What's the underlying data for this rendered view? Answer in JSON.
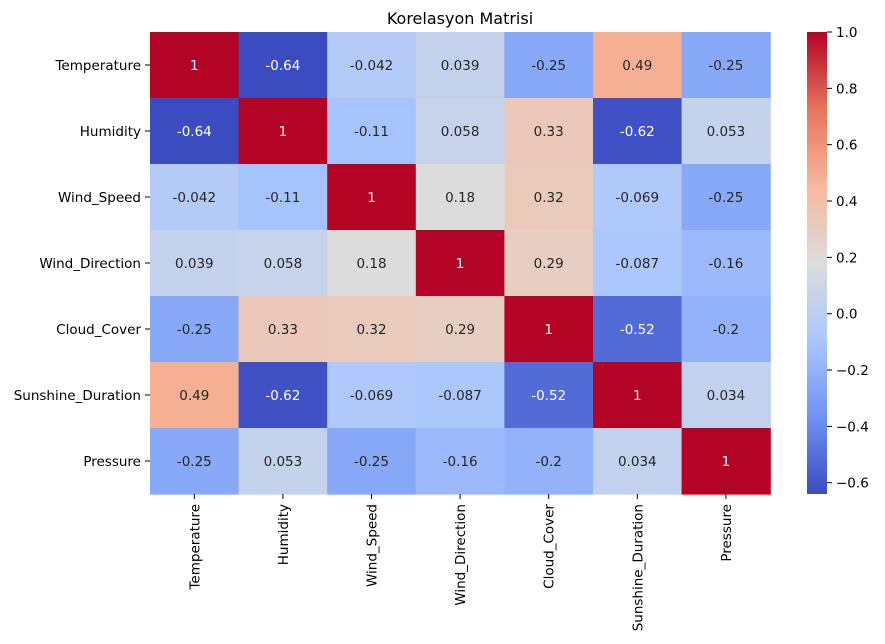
{
  "chart_data": {
    "type": "heatmap",
    "title": "Korelasyon Matrisi",
    "xlabel": "",
    "ylabel": "",
    "row_labels": [
      "Temperature",
      "Humidity",
      "Wind_Speed",
      "Wind_Direction",
      "Cloud_Cover",
      "Sunshine_Duration",
      "Pressure"
    ],
    "col_labels": [
      "Temperature",
      "Humidity",
      "Wind_Speed",
      "Wind_Direction",
      "Cloud_Cover",
      "Sunshine_Duration",
      "Pressure"
    ],
    "values": [
      [
        1,
        -0.64,
        -0.042,
        0.039,
        -0.25,
        0.49,
        -0.25
      ],
      [
        -0.64,
        1,
        -0.11,
        0.058,
        0.33,
        -0.62,
        0.053
      ],
      [
        -0.042,
        -0.11,
        1,
        0.18,
        0.32,
        -0.069,
        -0.25
      ],
      [
        0.039,
        0.058,
        0.18,
        1,
        0.29,
        -0.087,
        -0.16
      ],
      [
        -0.25,
        0.33,
        0.32,
        0.29,
        1,
        -0.52,
        -0.2
      ],
      [
        0.49,
        -0.62,
        -0.069,
        -0.087,
        -0.52,
        1,
        0.034
      ],
      [
        -0.25,
        0.053,
        -0.25,
        -0.16,
        -0.2,
        0.034,
        1
      ]
    ],
    "annot": [
      [
        "1",
        "-0.64",
        "-0.042",
        "0.039",
        "-0.25",
        "0.49",
        "-0.25"
      ],
      [
        "-0.64",
        "1",
        "-0.11",
        "0.058",
        "0.33",
        "-0.62",
        "0.053"
      ],
      [
        "-0.042",
        "-0.11",
        "1",
        "0.18",
        "0.32",
        "-0.069",
        "-0.25"
      ],
      [
        "0.039",
        "0.058",
        "0.18",
        "1",
        "0.29",
        "-0.087",
        "-0.16"
      ],
      [
        "-0.25",
        "0.33",
        "0.32",
        "0.29",
        "1",
        "-0.52",
        "-0.2"
      ],
      [
        "0.49",
        "-0.62",
        "-0.069",
        "-0.087",
        "-0.52",
        "1",
        "0.034"
      ],
      [
        "-0.25",
        "0.053",
        "-0.25",
        "-0.16",
        "-0.2",
        "0.034",
        "1"
      ]
    ],
    "colormap": "coolwarm",
    "colormap_stops": [
      "#3b4cc0",
      "#6f92f3",
      "#aac7fd",
      "#dddcdc",
      "#f7b89c",
      "#e7745b",
      "#b40426"
    ],
    "vmin": -0.64,
    "vmax": 1,
    "colorbar": {
      "ticks": [
        1.0,
        0.8,
        0.6,
        0.4,
        0.2,
        0.0,
        -0.2,
        -0.4,
        -0.6
      ],
      "tick_labels": [
        "1.0",
        "0.8",
        "0.6",
        "0.4",
        "0.2",
        "0.0",
        "−0.2",
        "−0.4",
        "−0.6"
      ],
      "placement": "right"
    },
    "grid": false
  }
}
